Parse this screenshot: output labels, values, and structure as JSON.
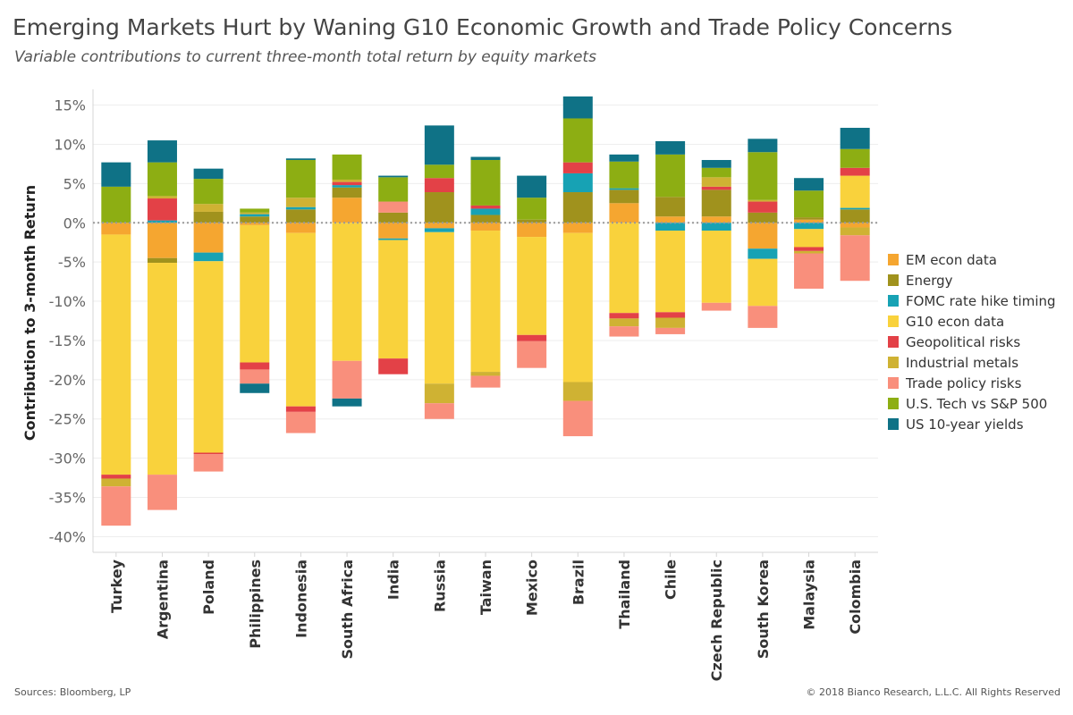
{
  "header": {
    "title": "Emerging Markets Hurt by Waning G10 Economic Growth and Trade Policy Concerns",
    "subtitle": "Variable contributions to current three-month total return by equity markets"
  },
  "footer": {
    "source": "Sources: Bloomberg, LP",
    "copyright": "© 2018 Bianco Research, L.L.C. All Rights Reserved"
  },
  "chart_data": {
    "type": "bar",
    "stacked": true,
    "title": "Emerging Markets Hurt by Waning G10 Economic Growth and Trade Policy Concerns",
    "subtitle": "Variable contributions to current three-month total return by equity markets",
    "ylabel": "Contribution to 3-month Return",
    "xlabel": "",
    "ylim": [
      -42,
      17
    ],
    "yticks": [
      15,
      10,
      5,
      0,
      -5,
      -10,
      -15,
      -20,
      -25,
      -30,
      -35,
      -40
    ],
    "ytick_labels": [
      "15%",
      "10%",
      "5%",
      "0%",
      "-5%",
      "-10%",
      "-15%",
      "-20%",
      "-25%",
      "-30%",
      "-35%",
      "-40%"
    ],
    "grid": true,
    "zero_line": "dotted",
    "legend_position": "right",
    "categories": [
      "Turkey",
      "Argentina",
      "Poland",
      "Philippines",
      "Indonesia",
      "South Africa",
      "India",
      "Russia",
      "Taiwan",
      "Mexico",
      "Brazil",
      "Thailand",
      "Chile",
      "Czech Republic",
      "South Korea",
      "Malaysia",
      "Colombia"
    ],
    "series": [
      {
        "name": "EM econ data",
        "color": "#f5a630",
        "values": [
          -1.5,
          -4.5,
          -3.8,
          -0.3,
          -1.3,
          3.2,
          -2.0,
          -0.7,
          -1.0,
          -1.8,
          -1.3,
          2.5,
          0.8,
          0.8,
          -3.3,
          0.4,
          -0.6
        ]
      },
      {
        "name": "Energy",
        "color": "#a0921d",
        "values": [
          0.0,
          -0.6,
          1.4,
          0.8,
          1.7,
          1.3,
          1.3,
          3.9,
          1.0,
          0.4,
          3.9,
          1.7,
          2.5,
          3.4,
          1.3,
          0.3,
          1.7
        ]
      },
      {
        "name": "FOMC rate hike timing",
        "color": "#17a2b4",
        "values": [
          0.0,
          0.3,
          -1.1,
          0.3,
          0.3,
          0.3,
          -0.2,
          -0.5,
          0.8,
          0.0,
          2.4,
          0.2,
          -1.0,
          -1.0,
          -1.3,
          -0.8,
          0.2
        ]
      },
      {
        "name": "G10 econ data",
        "color": "#f9d23c",
        "values": [
          -30.6,
          -27.0,
          -24.4,
          -17.5,
          -22.1,
          -17.6,
          -15.1,
          -19.3,
          -18.0,
          -12.5,
          -19.0,
          -11.5,
          -10.4,
          -9.2,
          -6.0,
          -2.3,
          4.1
        ]
      },
      {
        "name": "Geopolitical risks",
        "color": "#e34147",
        "values": [
          -0.5,
          2.8,
          -0.2,
          -0.9,
          -0.7,
          0.4,
          -2.0,
          1.8,
          0.4,
          -0.8,
          1.4,
          -0.7,
          -0.7,
          0.4,
          1.4,
          -0.5,
          1.0
        ]
      },
      {
        "name": "Industrial metals",
        "color": "#cfb233",
        "values": [
          -1.0,
          0.3,
          1.0,
          0.2,
          1.2,
          0.3,
          0.0,
          -2.5,
          -0.5,
          0.0,
          -2.4,
          -1.0,
          -1.3,
          1.2,
          0.2,
          -0.3,
          -1.0
        ]
      },
      {
        "name": "Trade policy risks",
        "color": "#f98f7c",
        "values": [
          -5.0,
          -4.5,
          -2.2,
          -1.8,
          -2.7,
          -4.8,
          1.4,
          -2.0,
          -1.5,
          -3.4,
          -4.5,
          -1.3,
          -0.8,
          -1.0,
          -2.8,
          -4.5,
          -5.8
        ]
      },
      {
        "name": "U.S. Tech vs S&P 500",
        "color": "#8dae13",
        "values": [
          4.6,
          4.3,
          3.2,
          0.5,
          4.8,
          3.2,
          3.1,
          1.7,
          5.8,
          2.8,
          5.6,
          3.4,
          5.4,
          1.2,
          6.1,
          3.4,
          2.4
        ]
      },
      {
        "name": "US 10-year yields",
        "color": "#0f7286",
        "values": [
          3.1,
          2.8,
          1.3,
          -1.2,
          0.2,
          -1.0,
          0.2,
          5.0,
          0.4,
          2.8,
          2.8,
          0.9,
          1.7,
          1.0,
          1.7,
          1.6,
          2.7
        ]
      }
    ]
  }
}
